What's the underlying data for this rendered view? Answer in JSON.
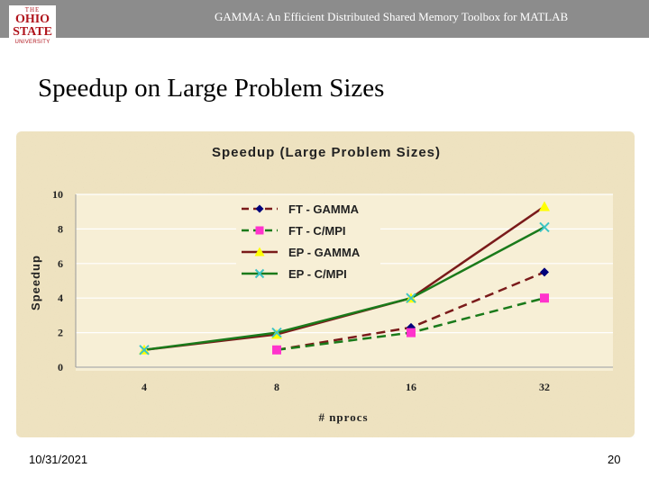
{
  "header": {
    "title": "GAMMA: An Efficient Distributed Shared Memory Toolbox for MATLAB",
    "logo": {
      "top": "THE",
      "line1": "OHIO",
      "line2": "STATE",
      "bottom": "UNIVERSITY",
      "color": "#b0141c"
    }
  },
  "slide": {
    "title": "Speedup on Large Problem Sizes"
  },
  "footer": {
    "date": "10/31/2021",
    "page": "20"
  },
  "chart_data": {
    "type": "line",
    "title": "Speedup (Large Problem Sizes)",
    "xlabel": "# nprocs",
    "ylabel": "Speedup",
    "categories": [
      "4",
      "8",
      "16",
      "32"
    ],
    "ylim": [
      0,
      10
    ],
    "yticks": [
      0,
      2,
      4,
      6,
      8,
      10
    ],
    "grid": "horizontal",
    "legend": "top-center",
    "series": [
      {
        "name": "FT - GAMMA",
        "values": [
          null,
          1,
          2.3,
          5.5
        ],
        "color": "#7a1a1a",
        "marker": "diamond",
        "marker_color": "#00007a",
        "dashed": true
      },
      {
        "name": "FT - C/MPI",
        "values": [
          null,
          1,
          2,
          4
        ],
        "color": "#1a7a1a",
        "marker": "square",
        "marker_color": "#ff33cc",
        "dashed": true
      },
      {
        "name": "EP - GAMMA",
        "values": [
          1,
          1.9,
          4,
          9.3
        ],
        "color": "#7a1a1a",
        "marker": "triangle",
        "marker_color": "#ffff00",
        "dashed": false
      },
      {
        "name": "EP - C/MPI",
        "values": [
          1,
          2,
          4,
          8.1
        ],
        "color": "#1a7a1a",
        "marker": "x",
        "marker_color": "#3cc4c4",
        "dashed": false
      }
    ],
    "colors": {
      "plot_bg": "#f7efd6",
      "frame_bg": "#efe3c0",
      "grid": "#ffffff",
      "text": "#222222"
    }
  }
}
